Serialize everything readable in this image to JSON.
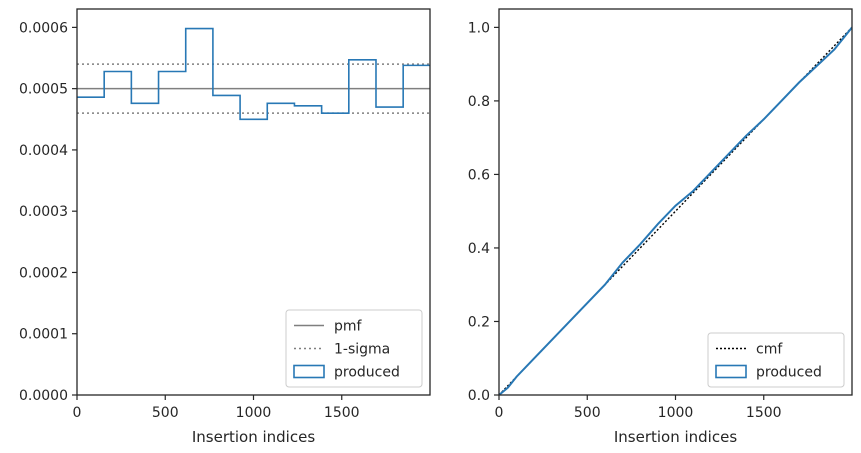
{
  "chart_data": [
    {
      "type": "line",
      "xlabel": "Insertion indices",
      "ylabel": "",
      "xlim": [
        0,
        2000
      ],
      "ylim": [
        0,
        0.00063
      ],
      "x_ticks": [
        0,
        500,
        1000,
        1500
      ],
      "x_tick_labels": [
        "0",
        "500",
        "1000",
        "1500"
      ],
      "y_ticks": [
        0,
        0.0001,
        0.0002,
        0.0003,
        0.0004,
        0.0005,
        0.0006
      ],
      "y_tick_labels": [
        "0.0000",
        "0.0001",
        "0.0002",
        "0.0003",
        "0.0004",
        "0.0005",
        "0.0006"
      ],
      "pmf": 0.0005,
      "sigma_band": [
        0.00046,
        0.00054
      ],
      "histogram": {
        "bin_edges": [
          0,
          154,
          308,
          462,
          616,
          770,
          924,
          1078,
          1232,
          1386,
          1540,
          1694,
          1848,
          2000
        ],
        "values": [
          0.000486,
          0.000528,
          0.000476,
          0.000528,
          0.000598,
          0.000489,
          0.00045,
          0.000476,
          0.000472,
          0.00046,
          0.000547,
          0.00047,
          0.000538
        ]
      },
      "legend": {
        "placement": "lower right",
        "entries": [
          "pmf",
          "1-sigma",
          "produced"
        ]
      },
      "grid": false
    },
    {
      "type": "line",
      "xlabel": "Insertion indices",
      "ylabel": "",
      "xlim": [
        0,
        2000
      ],
      "ylim": [
        0,
        1.05
      ],
      "x_ticks": [
        0,
        500,
        1000,
        1500
      ],
      "x_tick_labels": [
        "0",
        "500",
        "1000",
        "1500"
      ],
      "y_ticks": [
        0,
        0.2,
        0.4,
        0.6,
        0.8,
        1.0
      ],
      "y_tick_labels": [
        "0.0",
        "0.2",
        "0.4",
        "0.6",
        "0.8",
        "1.0"
      ],
      "cmf": {
        "x": [
          0,
          2000
        ],
        "y": [
          0,
          1
        ]
      },
      "produced": {
        "x": [
          0,
          50,
          100,
          200,
          300,
          400,
          500,
          600,
          700,
          800,
          900,
          1000,
          1100,
          1200,
          1300,
          1400,
          1500,
          1600,
          1700,
          1800,
          1900,
          2000
        ],
        "y": [
          0,
          0.02,
          0.05,
          0.1,
          0.15,
          0.2,
          0.25,
          0.3,
          0.36,
          0.41,
          0.465,
          0.515,
          0.555,
          0.605,
          0.655,
          0.705,
          0.75,
          0.8,
          0.85,
          0.895,
          0.94,
          1.0
        ]
      },
      "legend": {
        "placement": "lower right",
        "entries": [
          "cmf",
          "produced"
        ]
      },
      "grid": false
    }
  ]
}
